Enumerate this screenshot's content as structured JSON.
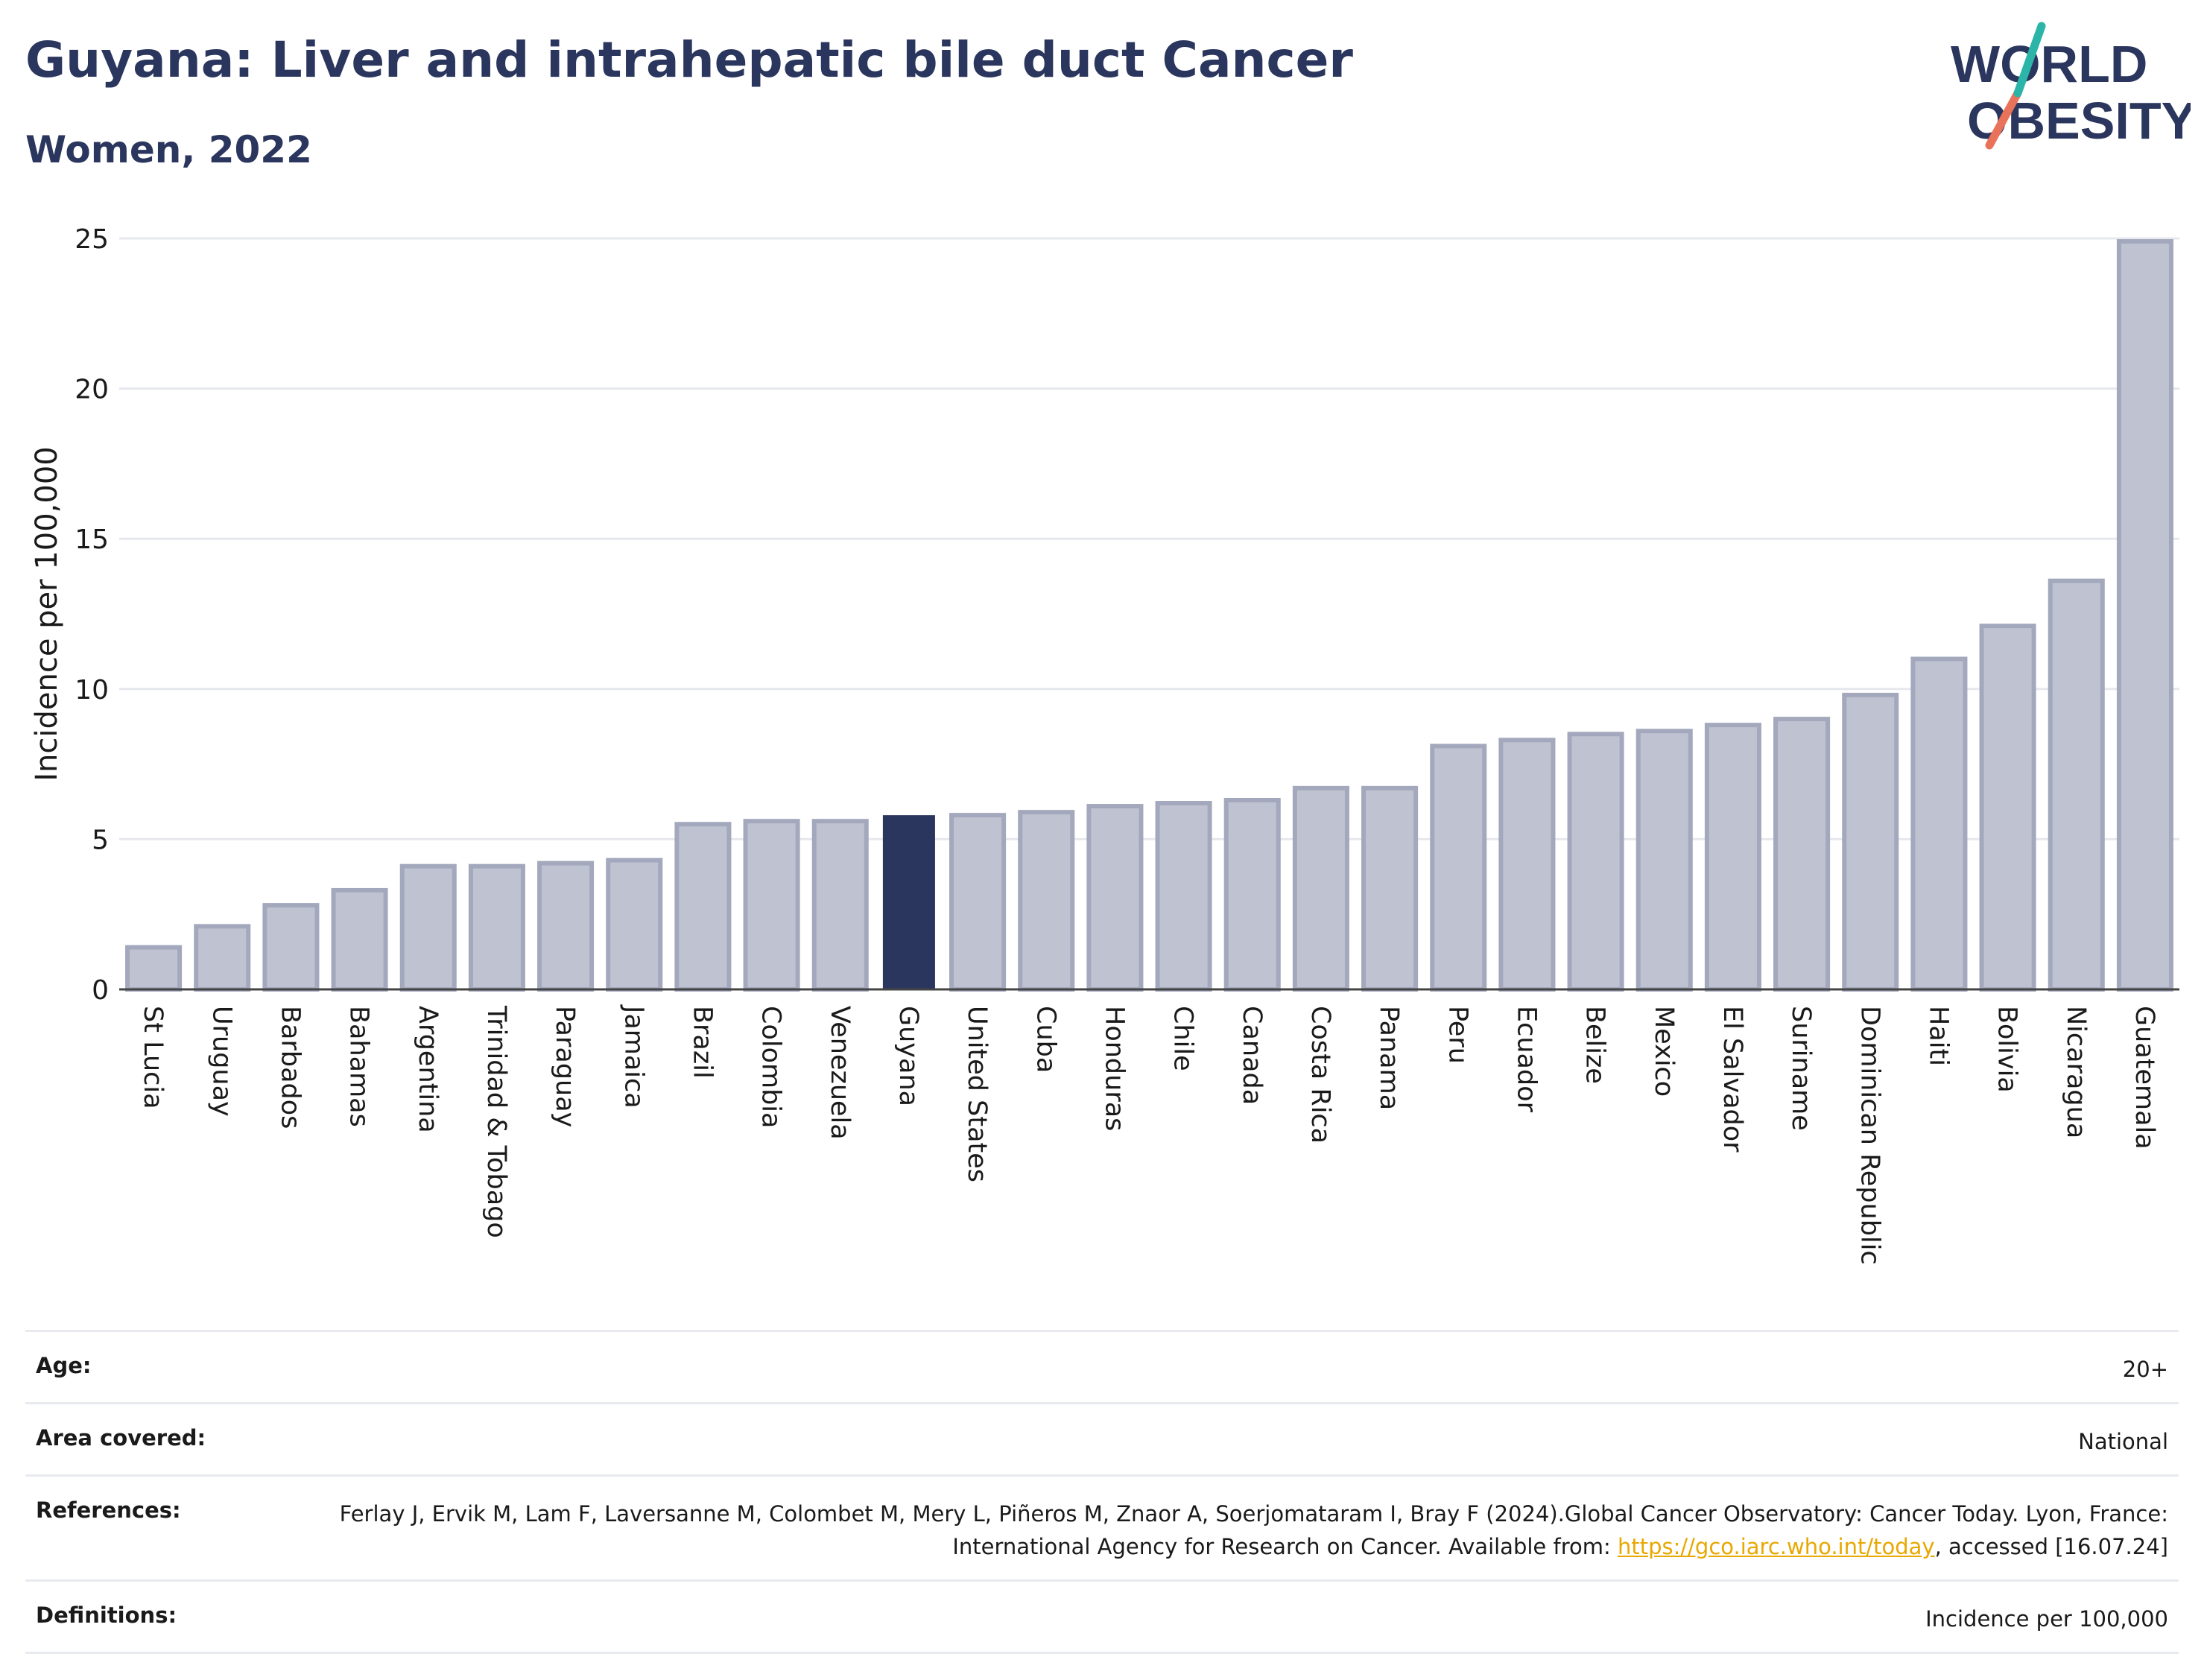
{
  "header": {
    "title": "Guyana: Liver and intrahepatic bile duct Cancer",
    "subtitle": "Women, 2022"
  },
  "logo": {
    "line1": "WORLD",
    "line2": "OBESITY"
  },
  "colors": {
    "highlight": "#2b365e",
    "bar": "#bfc3d1",
    "bar_border": "#a3a8bd",
    "text": "#2b365e",
    "link": "#e8a800"
  },
  "chart_data": {
    "type": "bar",
    "ylabel": "Incidence per 100,000",
    "ylim": [
      0,
      25
    ],
    "yticks": [
      0,
      5,
      10,
      15,
      20,
      25
    ],
    "highlight": "Guyana",
    "categories": [
      "St Lucia",
      "Uruguay",
      "Barbados",
      "Bahamas",
      "Argentina",
      "Trinidad & Tobago",
      "Paraguay",
      "Jamaica",
      "Brazil",
      "Colombia",
      "Venezuela",
      "Guyana",
      "United States",
      "Cuba",
      "Honduras",
      "Chile",
      "Canada",
      "Costa Rica",
      "Panama",
      "Peru",
      "Ecuador",
      "Belize",
      "Mexico",
      "El Salvador",
      "Suriname",
      "Dominican Republic",
      "Haiti",
      "Bolivia",
      "Nicaragua",
      "Guatemala"
    ],
    "values": [
      1.4,
      2.1,
      2.8,
      3.3,
      4.1,
      4.1,
      4.2,
      4.3,
      5.5,
      5.6,
      5.6,
      5.8,
      5.8,
      5.9,
      6.1,
      6.2,
      6.3,
      6.7,
      6.7,
      8.1,
      8.3,
      8.5,
      8.6,
      8.8,
      9.0,
      9.8,
      11.0,
      12.1,
      13.6,
      24.9
    ]
  },
  "info": {
    "age_label": "Age:",
    "age_value": "20+",
    "area_label": "Area covered:",
    "area_value": "National",
    "references_label": "References:",
    "references_text": "Ferlay J, Ervik M, Lam F, Laversanne M, Colombet M, Mery L, Piñeros M, Znaor A, Soerjomataram I, Bray F (2024).Global Cancer Observatory: Cancer Today. Lyon, France: International Agency for Research on Cancer. Available from:",
    "references_link": "https://gco.iarc.who.int/today",
    "references_tail": ", accessed [16.07.24]",
    "definitions_label": "Definitions:",
    "definitions_value": "Incidence per 100,000"
  }
}
